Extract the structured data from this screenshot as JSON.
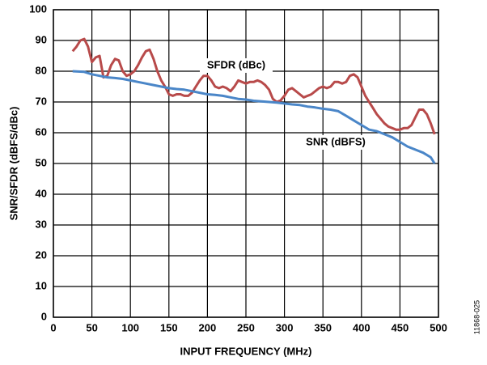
{
  "chart_data": {
    "type": "line",
    "xlabel": "INPUT FREQUENCY (MHz)",
    "ylabel": "SNR/SFDR (dBFS/dBc)",
    "annotations": [
      "SFDR (dBc)",
      "SNR (dBFS)"
    ],
    "figure_id": "11868-025",
    "xlim": [
      0,
      500
    ],
    "xticks": [
      0,
      50,
      100,
      150,
      200,
      250,
      300,
      350,
      400,
      450,
      500
    ],
    "ylim": [
      0,
      100
    ],
    "yticks": [
      0,
      10,
      20,
      30,
      40,
      50,
      60,
      70,
      80,
      90,
      100
    ],
    "grid": true,
    "series": [
      {
        "name": "SFDR (dBc)",
        "color": "#b84a4a",
        "x": [
          25,
          30,
          35,
          40,
          45,
          50,
          55,
          60,
          65,
          70,
          75,
          80,
          85,
          90,
          95,
          100,
          105,
          110,
          115,
          120,
          125,
          130,
          135,
          140,
          145,
          150,
          155,
          160,
          165,
          170,
          175,
          180,
          185,
          190,
          195,
          200,
          205,
          210,
          215,
          220,
          225,
          230,
          235,
          240,
          245,
          250,
          255,
          260,
          265,
          270,
          275,
          280,
          285,
          290,
          295,
          300,
          305,
          310,
          315,
          320,
          325,
          330,
          335,
          340,
          345,
          350,
          355,
          360,
          365,
          370,
          375,
          380,
          385,
          390,
          395,
          400,
          405,
          410,
          415,
          420,
          425,
          430,
          435,
          440,
          445,
          450,
          455,
          460,
          465,
          470,
          475,
          480,
          485,
          490,
          495
        ],
        "values": [
          86.5,
          88,
          90,
          90.5,
          88,
          83,
          84.5,
          85,
          78,
          78.5,
          82,
          84,
          83.5,
          80,
          78.5,
          79,
          80,
          82,
          84.5,
          86.5,
          87,
          84,
          80,
          77,
          75,
          72.5,
          72,
          72.5,
          72.5,
          72,
          72,
          73,
          75,
          77,
          78.5,
          78.5,
          77,
          75,
          74.5,
          75,
          74.5,
          73.5,
          75,
          77,
          76.5,
          76,
          76.5,
          76.5,
          77,
          76.5,
          75.5,
          74,
          71,
          70,
          70.5,
          72,
          74,
          74.5,
          73.5,
          72.5,
          71.5,
          72,
          72.5,
          73.5,
          74.5,
          75,
          74.5,
          75,
          76.5,
          76.5,
          76,
          76.5,
          78.5,
          79,
          78,
          75,
          72,
          70,
          68,
          66,
          64.5,
          63,
          62,
          61.5,
          61,
          61,
          61.5,
          61.5,
          62.5,
          65,
          67.5,
          67.5,
          66,
          63,
          59.5
        ]
      },
      {
        "name": "SNR (dBFS)",
        "color": "#4a86c8",
        "x": [
          25,
          40,
          50,
          60,
          70,
          80,
          90,
          100,
          110,
          120,
          130,
          140,
          150,
          160,
          170,
          180,
          190,
          200,
          210,
          220,
          230,
          240,
          250,
          260,
          270,
          280,
          290,
          300,
          310,
          320,
          330,
          340,
          350,
          360,
          370,
          380,
          390,
          400,
          410,
          420,
          430,
          440,
          450,
          460,
          470,
          480,
          490,
          495
        ],
        "values": [
          80,
          79.8,
          79,
          78.5,
          78,
          77.8,
          77.5,
          77,
          76.5,
          76,
          75.5,
          75,
          74.5,
          74.2,
          74,
          73.5,
          73,
          72.5,
          72.3,
          72,
          71.5,
          71,
          70.8,
          70.4,
          70.2,
          70,
          69.8,
          69.5,
          69.2,
          69,
          68.5,
          68.2,
          67.8,
          67.5,
          67,
          65.5,
          64,
          62.5,
          61,
          60.5,
          59.5,
          58.5,
          57,
          55.5,
          54.5,
          53.5,
          52,
          50
        ]
      }
    ]
  }
}
